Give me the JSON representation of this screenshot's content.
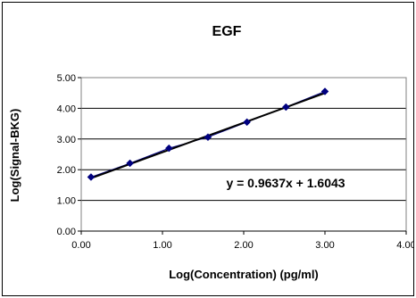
{
  "chart_data": {
    "type": "scatter",
    "title": "EGF",
    "xlabel": "Log(Concentration) (pg/ml)",
    "ylabel": "Log(Signal-BKG)",
    "xlim": [
      0,
      4
    ],
    "ylim": [
      0,
      5
    ],
    "x_ticks": [
      "0.00",
      "1.00",
      "2.00",
      "3.00",
      "4.00"
    ],
    "y_ticks": [
      "0.00",
      "1.00",
      "2.00",
      "3.00",
      "4.00",
      "5.00"
    ],
    "grid": "horizontal",
    "legend": "none",
    "series": [
      {
        "x": [
          0.12,
          0.6,
          1.08,
          1.56,
          2.04,
          2.52,
          3.0
        ],
        "y": [
          1.76,
          2.21,
          2.7,
          3.06,
          3.55,
          4.04,
          4.55
        ],
        "color": "#000080",
        "marker": "diamond"
      }
    ],
    "trendline": {
      "slope": 0.9637,
      "intercept": 1.6043,
      "color": "#000000",
      "equation": "y = 0.9637x + 1.6043"
    }
  }
}
